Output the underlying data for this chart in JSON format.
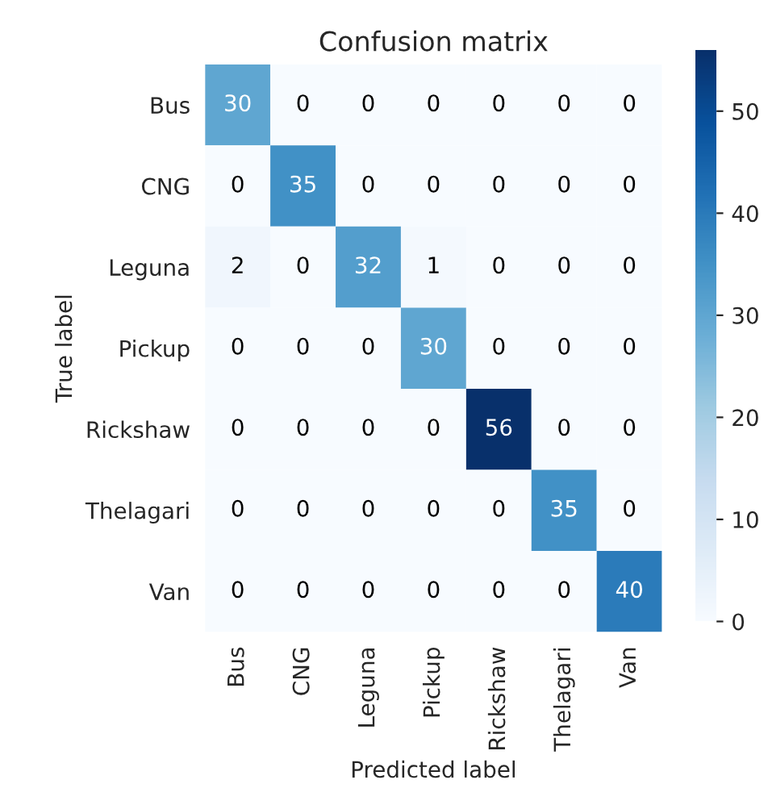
{
  "chart_data": {
    "type": "heatmap",
    "title": "Confusion matrix",
    "xlabel": "Predicted label",
    "ylabel": "True label",
    "categories": [
      "Bus",
      "CNG",
      "Leguna",
      "Pickup",
      "Rickshaw",
      "Thelagari",
      "Van"
    ],
    "y_categories": [
      "Bus",
      "CNG",
      "Leguna",
      "Pickup",
      "Rickshaw",
      "Thelagari",
      "Van"
    ],
    "cells": [
      [
        30,
        0,
        0,
        0,
        0,
        0,
        0
      ],
      [
        0,
        35,
        0,
        0,
        0,
        0,
        0
      ],
      [
        2,
        0,
        32,
        1,
        0,
        0,
        0
      ],
      [
        0,
        0,
        0,
        30,
        0,
        0,
        0
      ],
      [
        0,
        0,
        0,
        0,
        56,
        0,
        0
      ],
      [
        0,
        0,
        0,
        0,
        0,
        35,
        0
      ],
      [
        0,
        0,
        0,
        0,
        0,
        0,
        40
      ]
    ],
    "clim": [
      0,
      56
    ],
    "cticks": [
      0,
      10,
      20,
      30,
      40,
      50
    ],
    "data_labels": true
  }
}
